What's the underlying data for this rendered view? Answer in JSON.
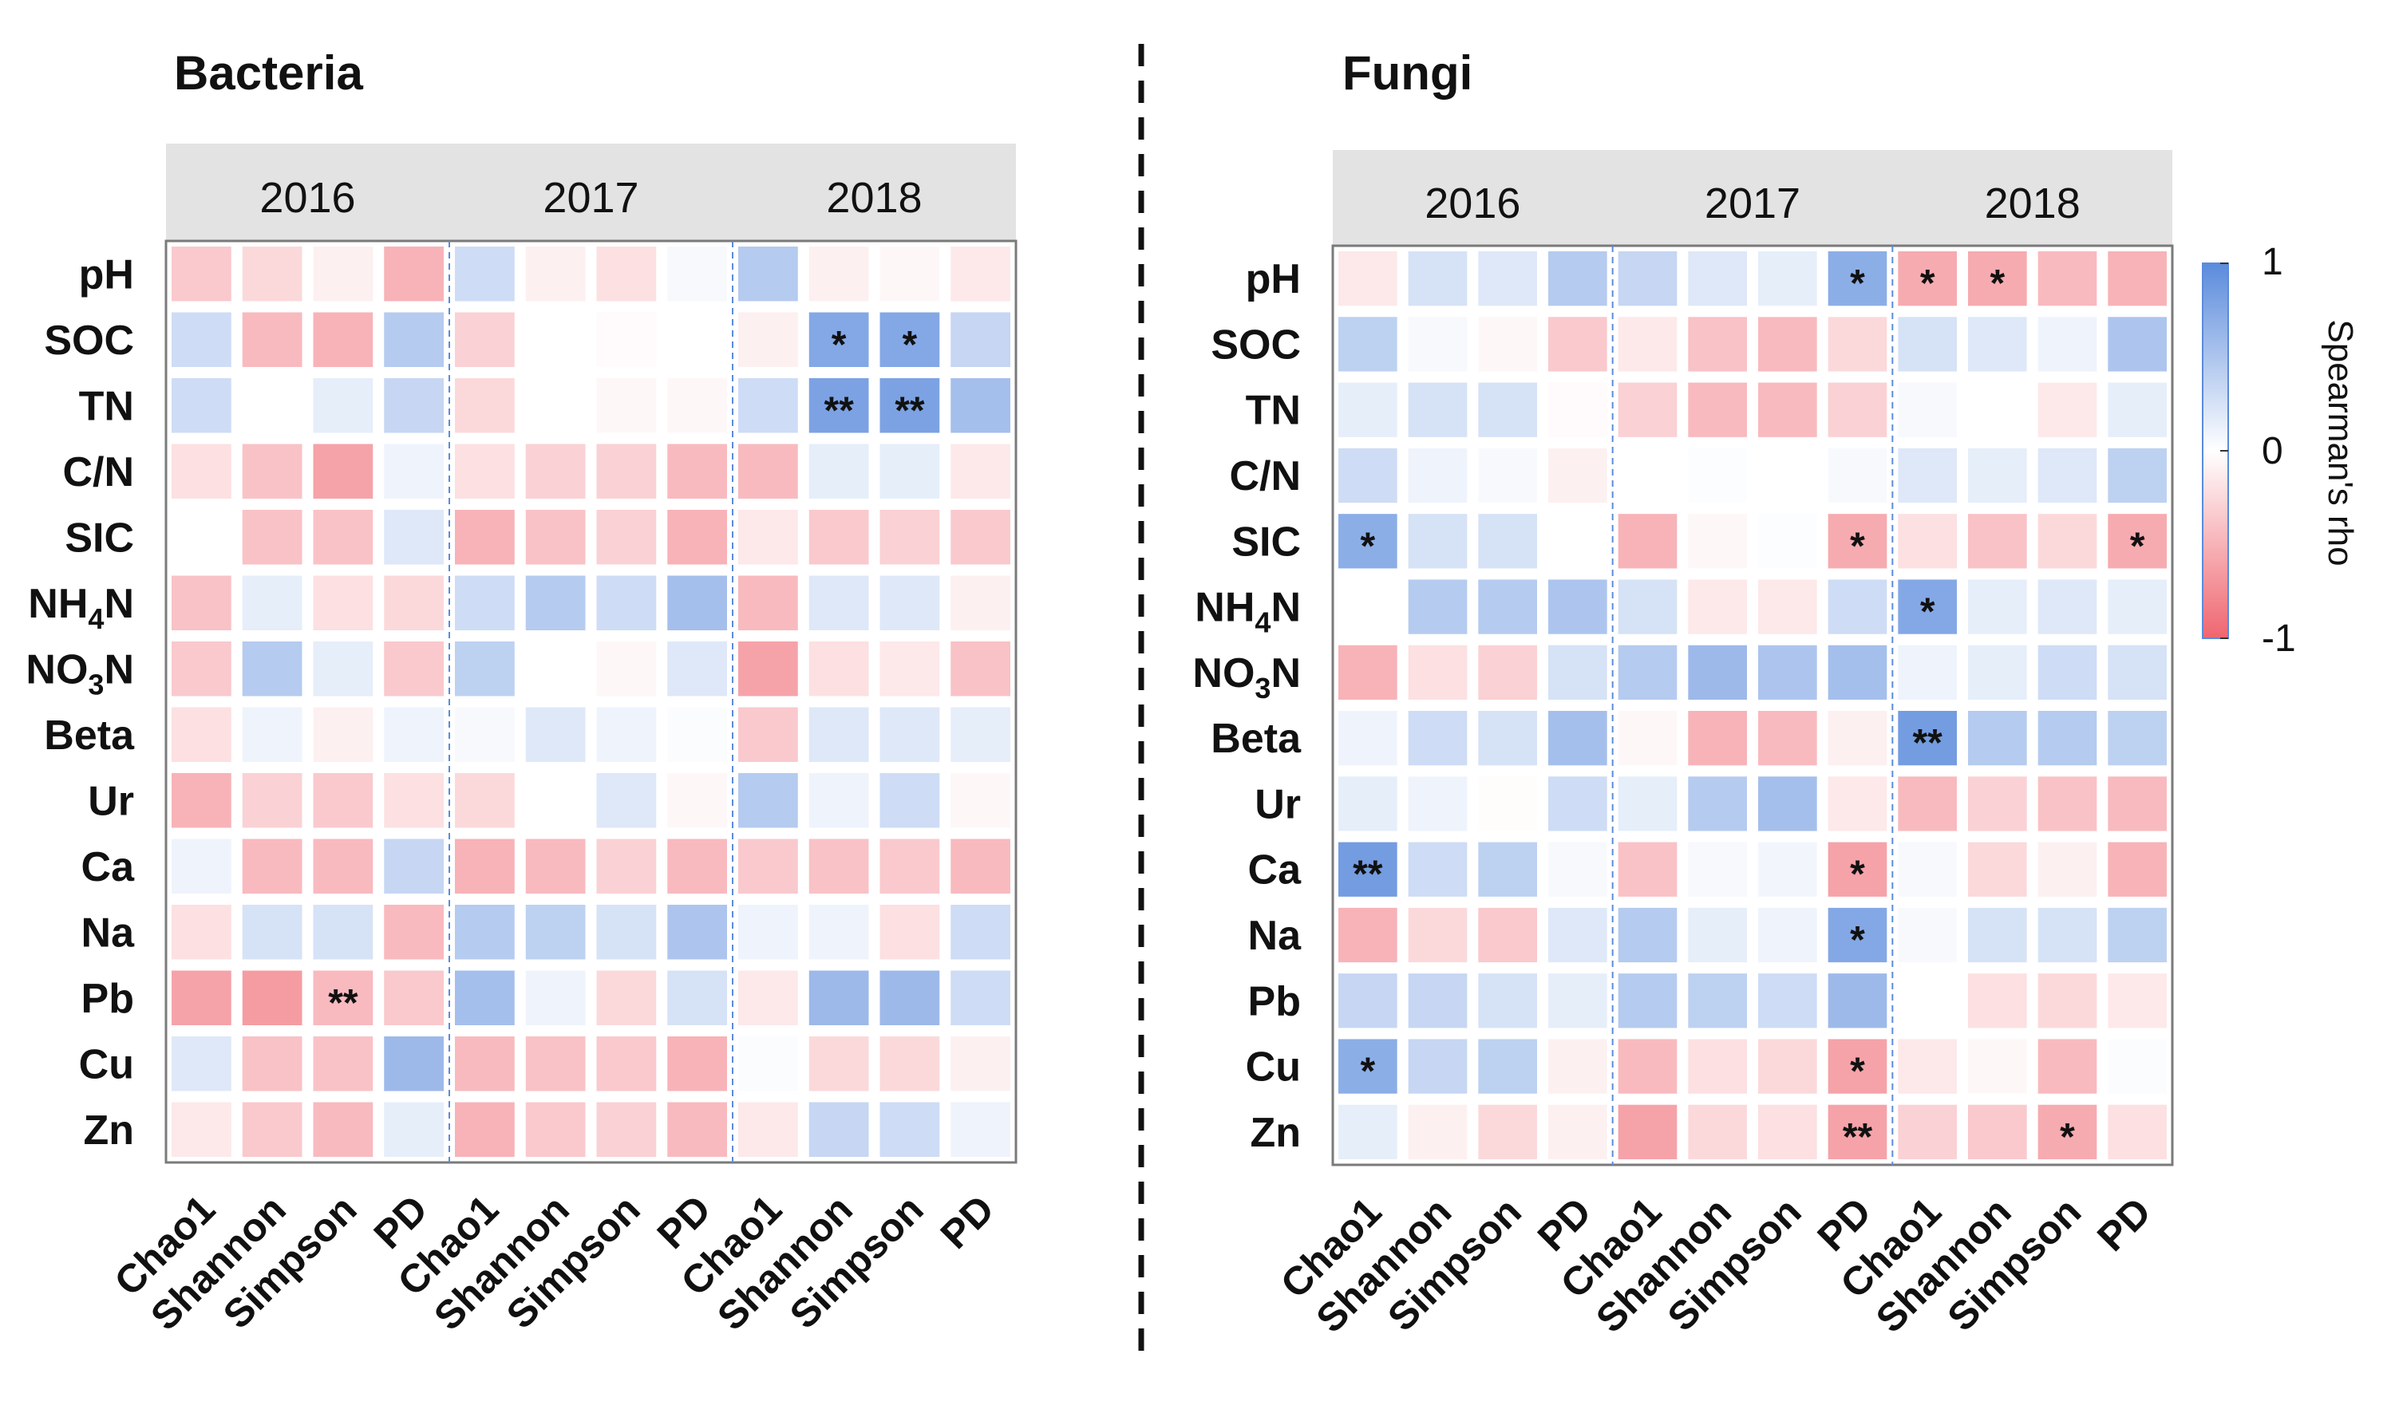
{
  "chart_data": [
    {
      "type": "heatmap",
      "title": "Bacteria",
      "years": [
        "2016",
        "2017",
        "2018"
      ],
      "metrics": [
        "Chao1",
        "Shannon",
        "Simpson",
        "PD"
      ],
      "columns": [
        "Chao1",
        "Shannon",
        "Simpson",
        "PD",
        "Chao1",
        "Shannon",
        "Simpson",
        "PD",
        "Chao1",
        "Shannon",
        "Simpson",
        "PD"
      ],
      "rows": [
        "pH",
        "SOC",
        "TN",
        "C/N",
        "SIC",
        "NH4N",
        "NO3N",
        "Beta",
        "Ur",
        "Ca",
        "Na",
        "Pb",
        "Cu",
        "Zn"
      ],
      "values": [
        [
          -0.35,
          -0.25,
          -0.1,
          -0.5,
          0.3,
          -0.1,
          -0.2,
          0.05,
          0.45,
          -0.1,
          -0.05,
          -0.15
        ],
        [
          0.3,
          -0.45,
          -0.5,
          0.45,
          -0.3,
          0.0,
          -0.03,
          0.0,
          -0.1,
          0.75,
          0.75,
          0.35
        ],
        [
          0.3,
          0.0,
          0.15,
          0.35,
          -0.25,
          0.0,
          -0.05,
          -0.05,
          0.3,
          0.8,
          0.8,
          0.55
        ],
        [
          -0.2,
          -0.4,
          -0.6,
          0.1,
          -0.2,
          -0.3,
          -0.3,
          -0.45,
          -0.45,
          0.15,
          0.15,
          -0.15
        ],
        [
          0.0,
          -0.4,
          -0.4,
          0.2,
          -0.5,
          -0.4,
          -0.3,
          -0.5,
          -0.15,
          -0.35,
          -0.3,
          -0.35
        ],
        [
          -0.4,
          0.15,
          -0.2,
          -0.25,
          0.3,
          0.45,
          0.3,
          0.55,
          -0.45,
          0.2,
          0.2,
          -0.1
        ],
        [
          -0.35,
          0.45,
          0.15,
          -0.35,
          0.4,
          0.0,
          -0.05,
          0.2,
          -0.6,
          -0.2,
          -0.15,
          -0.4
        ],
        [
          -0.2,
          0.1,
          -0.1,
          0.1,
          0.05,
          0.2,
          0.1,
          0.03,
          -0.35,
          0.2,
          0.2,
          0.15
        ],
        [
          -0.5,
          -0.3,
          -0.35,
          -0.2,
          -0.25,
          0.0,
          0.2,
          -0.05,
          0.45,
          0.1,
          0.3,
          -0.05
        ],
        [
          0.1,
          -0.45,
          -0.45,
          0.35,
          -0.5,
          -0.45,
          -0.3,
          -0.45,
          -0.35,
          -0.4,
          -0.35,
          -0.45
        ],
        [
          -0.2,
          0.25,
          0.25,
          -0.45,
          0.45,
          0.4,
          0.25,
          0.5,
          0.1,
          0.1,
          -0.2,
          0.3
        ],
        [
          -0.6,
          -0.65,
          -0.45,
          -0.35,
          0.55,
          0.1,
          -0.25,
          0.25,
          -0.15,
          0.6,
          0.6,
          0.3
        ],
        [
          0.2,
          -0.4,
          -0.4,
          0.6,
          -0.45,
          -0.4,
          -0.35,
          -0.5,
          0.03,
          -0.25,
          -0.25,
          -0.1
        ],
        [
          -0.15,
          -0.35,
          -0.45,
          0.15,
          -0.5,
          -0.35,
          -0.3,
          -0.45,
          -0.15,
          0.35,
          0.3,
          0.1
        ]
      ],
      "significance": [
        [
          "",
          "",
          "",
          "",
          "",
          "",
          "",
          "",
          "",
          "",
          "",
          ""
        ],
        [
          "",
          "",
          "",
          "",
          "",
          "",
          "",
          "",
          "",
          "*",
          "*",
          ""
        ],
        [
          "",
          "",
          "",
          "",
          "",
          "",
          "",
          "",
          "",
          "**",
          "**",
          ""
        ],
        [
          "",
          "",
          "",
          "",
          "",
          "",
          "",
          "",
          "",
          "",
          "",
          ""
        ],
        [
          "",
          "",
          "",
          "",
          "",
          "",
          "",
          "",
          "",
          "",
          "",
          ""
        ],
        [
          "",
          "",
          "",
          "",
          "",
          "",
          "",
          "",
          "",
          "",
          "",
          ""
        ],
        [
          "",
          "",
          "",
          "",
          "",
          "",
          "",
          "",
          "",
          "",
          "",
          ""
        ],
        [
          "",
          "",
          "",
          "",
          "",
          "",
          "",
          "",
          "",
          "",
          "",
          ""
        ],
        [
          "",
          "",
          "",
          "",
          "",
          "",
          "",
          "",
          "",
          "",
          "",
          ""
        ],
        [
          "",
          "",
          "",
          "",
          "",
          "",
          "",
          "",
          "",
          "",
          "",
          ""
        ],
        [
          "",
          "",
          "",
          "",
          "",
          "",
          "",
          "",
          "",
          "",
          "",
          ""
        ],
        [
          "",
          "",
          "**",
          "",
          "",
          "",
          "",
          "",
          "",
          "",
          "",
          ""
        ],
        [
          "",
          "",
          "",
          "",
          "",
          "",
          "",
          "",
          "",
          "",
          "",
          ""
        ],
        [
          "",
          "",
          "",
          "",
          "",
          "",
          "",
          "",
          "",
          "",
          "",
          ""
        ]
      ]
    },
    {
      "type": "heatmap",
      "title": "Fungi",
      "years": [
        "2016",
        "2017",
        "2018"
      ],
      "metrics": [
        "Chao1",
        "Shannon",
        "Simpson",
        "PD"
      ],
      "columns": [
        "Chao1",
        "Shannon",
        "Simpson",
        "PD",
        "Chao1",
        "Shannon",
        "Simpson",
        "PD",
        "Chao1",
        "Shannon",
        "Simpson",
        "PD"
      ],
      "rows": [
        "pH",
        "SOC",
        "TN",
        "C/N",
        "SIC",
        "NH4N",
        "NO3N",
        "Beta",
        "Ur",
        "Ca",
        "Na",
        "Pb",
        "Cu",
        "Zn"
      ],
      "values": [
        [
          -0.15,
          0.25,
          0.2,
          0.45,
          0.35,
          0.2,
          0.15,
          0.7,
          -0.55,
          -0.55,
          -0.45,
          -0.5
        ],
        [
          0.4,
          0.05,
          -0.05,
          -0.35,
          -0.15,
          -0.4,
          -0.45,
          -0.25,
          0.25,
          0.2,
          0.1,
          0.5
        ],
        [
          0.15,
          0.25,
          0.25,
          -0.03,
          -0.3,
          -0.45,
          -0.45,
          -0.3,
          0.05,
          0.0,
          -0.15,
          0.15
        ],
        [
          0.3,
          0.1,
          0.05,
          -0.1,
          0.0,
          0.02,
          0.0,
          0.05,
          0.2,
          0.15,
          0.2,
          0.4
        ],
        [
          0.7,
          0.25,
          0.25,
          0.0,
          -0.5,
          -0.05,
          0.02,
          -0.55,
          -0.2,
          -0.4,
          -0.25,
          -0.55
        ],
        [
          0.0,
          0.45,
          0.45,
          0.5,
          0.25,
          -0.15,
          -0.15,
          0.3,
          0.75,
          0.15,
          0.2,
          0.15
        ],
        [
          -0.5,
          -0.2,
          -0.3,
          0.25,
          0.45,
          0.6,
          0.5,
          0.55,
          0.1,
          0.15,
          0.3,
          0.25
        ],
        [
          0.1,
          0.3,
          0.25,
          0.55,
          -0.05,
          -0.5,
          -0.45,
          -0.1,
          0.85,
          0.45,
          0.45,
          0.4
        ],
        [
          0.15,
          0.1,
          -0.02,
          0.3,
          0.15,
          0.45,
          0.55,
          -0.15,
          -0.45,
          -0.3,
          -0.4,
          -0.45
        ],
        [
          0.85,
          0.3,
          0.4,
          0.05,
          -0.4,
          0.05,
          0.08,
          -0.6,
          0.05,
          -0.25,
          -0.1,
          -0.5
        ],
        [
          -0.5,
          -0.25,
          -0.35,
          0.2,
          0.45,
          0.15,
          0.1,
          0.75,
          0.05,
          0.25,
          0.25,
          0.4
        ],
        [
          0.35,
          0.35,
          0.25,
          0.15,
          0.45,
          0.4,
          0.3,
          0.6,
          0.0,
          -0.2,
          -0.25,
          -0.15
        ],
        [
          0.7,
          0.35,
          0.4,
          -0.1,
          -0.45,
          -0.2,
          -0.25,
          -0.6,
          -0.15,
          -0.05,
          -0.45,
          0.03
        ],
        [
          0.15,
          -0.1,
          -0.25,
          -0.1,
          -0.6,
          -0.25,
          -0.2,
          -0.6,
          -0.3,
          -0.35,
          -0.55,
          -0.2
        ]
      ],
      "significance": [
        [
          "",
          "",
          "",
          "",
          "",
          "",
          "",
          "*",
          "*",
          "*",
          "",
          ""
        ],
        [
          "",
          "",
          "",
          "",
          "",
          "",
          "",
          "",
          "",
          "",
          "",
          ""
        ],
        [
          "",
          "",
          "",
          "",
          "",
          "",
          "",
          "",
          "",
          "",
          "",
          ""
        ],
        [
          "",
          "",
          "",
          "",
          "",
          "",
          "",
          "",
          "",
          "",
          "",
          ""
        ],
        [
          "*",
          "",
          "",
          "",
          "",
          "",
          "",
          "*",
          "",
          "",
          "",
          "*"
        ],
        [
          "",
          "",
          "",
          "",
          "",
          "",
          "",
          "",
          "*",
          "",
          "",
          ""
        ],
        [
          "",
          "",
          "",
          "",
          "",
          "",
          "",
          "",
          "",
          "",
          "",
          ""
        ],
        [
          "",
          "",
          "",
          "",
          "",
          "",
          "",
          "",
          "**",
          "",
          "",
          ""
        ],
        [
          "",
          "",
          "",
          "",
          "",
          "",
          "",
          "",
          "",
          "",
          "",
          ""
        ],
        [
          "**",
          "",
          "",
          "",
          "",
          "",
          "",
          "*",
          "",
          "",
          "",
          ""
        ],
        [
          "",
          "",
          "",
          "",
          "",
          "",
          "",
          "*",
          "",
          "",
          "",
          ""
        ],
        [
          "",
          "",
          "",
          "",
          "",
          "",
          "",
          "",
          "",
          "",
          "",
          ""
        ],
        [
          "*",
          "",
          "",
          "",
          "",
          "",
          "",
          "*",
          "",
          "",
          "",
          ""
        ],
        [
          "",
          "",
          "",
          "",
          "",
          "",
          "",
          "**",
          "",
          "",
          "*",
          ""
        ]
      ]
    }
  ],
  "colorbar": {
    "title": "Spearman's rho",
    "ticks": [
      "1",
      "0",
      "-1"
    ],
    "positive_color": "#5b8bdc",
    "negative_color": "#ef6670",
    "neutral_color": "#ffffff"
  }
}
